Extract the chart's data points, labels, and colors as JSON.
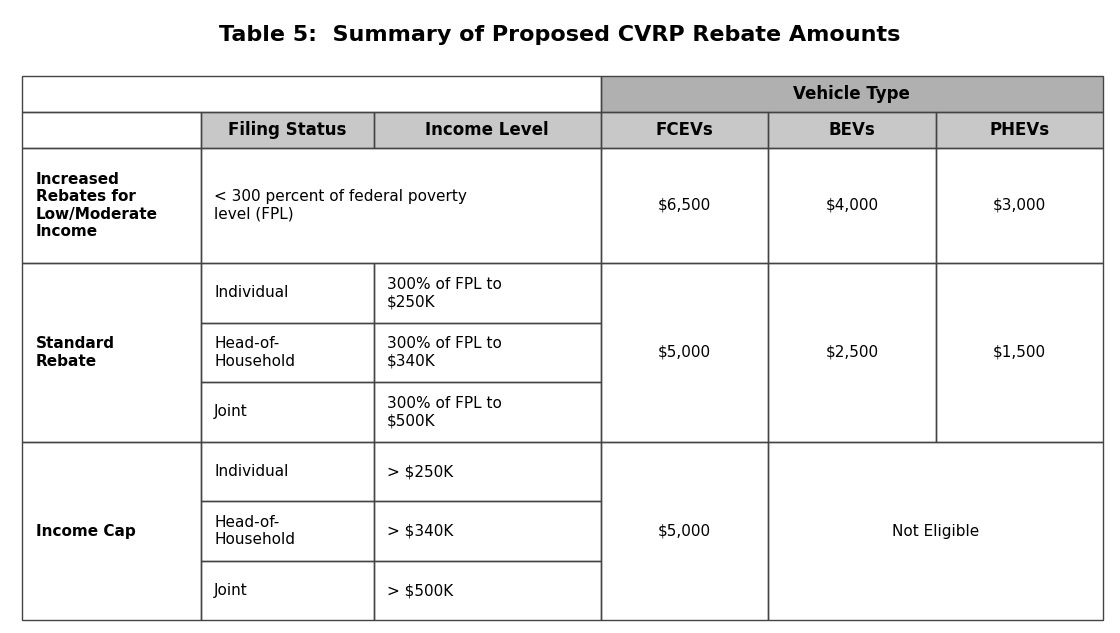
{
  "title": "Table 5:  Summary of Proposed CVRP Rebate Amounts",
  "title_fontsize": 16,
  "header_bg": "#b0b0b0",
  "subheader_bg": "#c8c8c8",
  "white_bg": "#ffffff",
  "border_color": "#444444",
  "text_color": "#000000",
  "vehicle_type_header": "Vehicle Type",
  "col_headers_row1": [
    "",
    "Filing Status",
    "Income Level",
    "FCEVs",
    "BEVs",
    "PHEVs"
  ],
  "increased_rebates_label": "Increased\nRebates for\nLow/Moderate\nIncome",
  "increased_rebates_income": "< 300 percent of federal poverty\nlevel (FPL)",
  "increased_rebates_fcevs": "$6,500",
  "increased_rebates_bevs": "$4,000",
  "increased_rebates_phevs": "$3,000",
  "standard_rebate_label": "Standard\nRebate",
  "standard_rebate_filing": [
    "Individual",
    "Head-of-\nHousehold",
    "Joint"
  ],
  "standard_rebate_income": [
    "300% of FPL to\n$250K",
    "300% of FPL to\n$340K",
    "300% of FPL to\n$500K"
  ],
  "standard_rebate_fcevs": "$5,000",
  "standard_rebate_bevs": "$2,500",
  "standard_rebate_phevs": "$1,500",
  "income_cap_label": "Income Cap",
  "income_cap_filing": [
    "Individual",
    "Head-of-\nHousehold",
    "Joint"
  ],
  "income_cap_income": [
    "> $250K",
    "> $340K",
    "> $500K"
  ],
  "income_cap_fcevs": "$5,000",
  "income_cap_not_eligible": "Not Eligible"
}
